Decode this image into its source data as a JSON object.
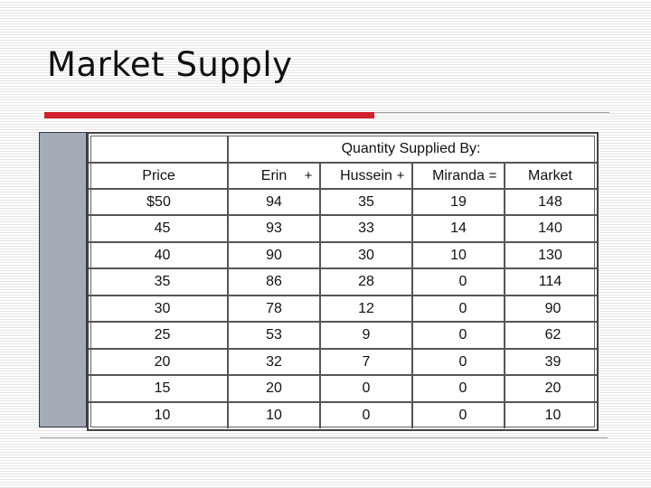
{
  "slide": {
    "title": "Market Supply"
  },
  "table": {
    "group_header": "Quantity Supplied By:",
    "headers": {
      "price": "Price",
      "erin": "Erin",
      "hussein": "Hussein",
      "miranda": "Miranda",
      "market": "Market"
    },
    "operators": {
      "plus1": "+",
      "plus2": "+",
      "equals": "="
    },
    "rows": [
      [
        "$50",
        "94",
        "35",
        "19",
        "148"
      ],
      [
        "45",
        "93",
        "33",
        "14",
        "140"
      ],
      [
        "40",
        "90",
        "30",
        "10",
        "130"
      ],
      [
        "35",
        "86",
        "28",
        "0",
        "114"
      ],
      [
        "30",
        "78",
        "12",
        "0",
        "90"
      ],
      [
        "25",
        "53",
        "9",
        "0",
        "62"
      ],
      [
        "20",
        "32",
        "7",
        "0",
        "39"
      ],
      [
        "15",
        "20",
        "0",
        "0",
        "20"
      ],
      [
        "10",
        "10",
        "0",
        "0",
        "10"
      ]
    ]
  },
  "colors": {
    "accent_rule": "#d21f2b",
    "sidebar": "#a3adb8",
    "grid": "#555555"
  }
}
